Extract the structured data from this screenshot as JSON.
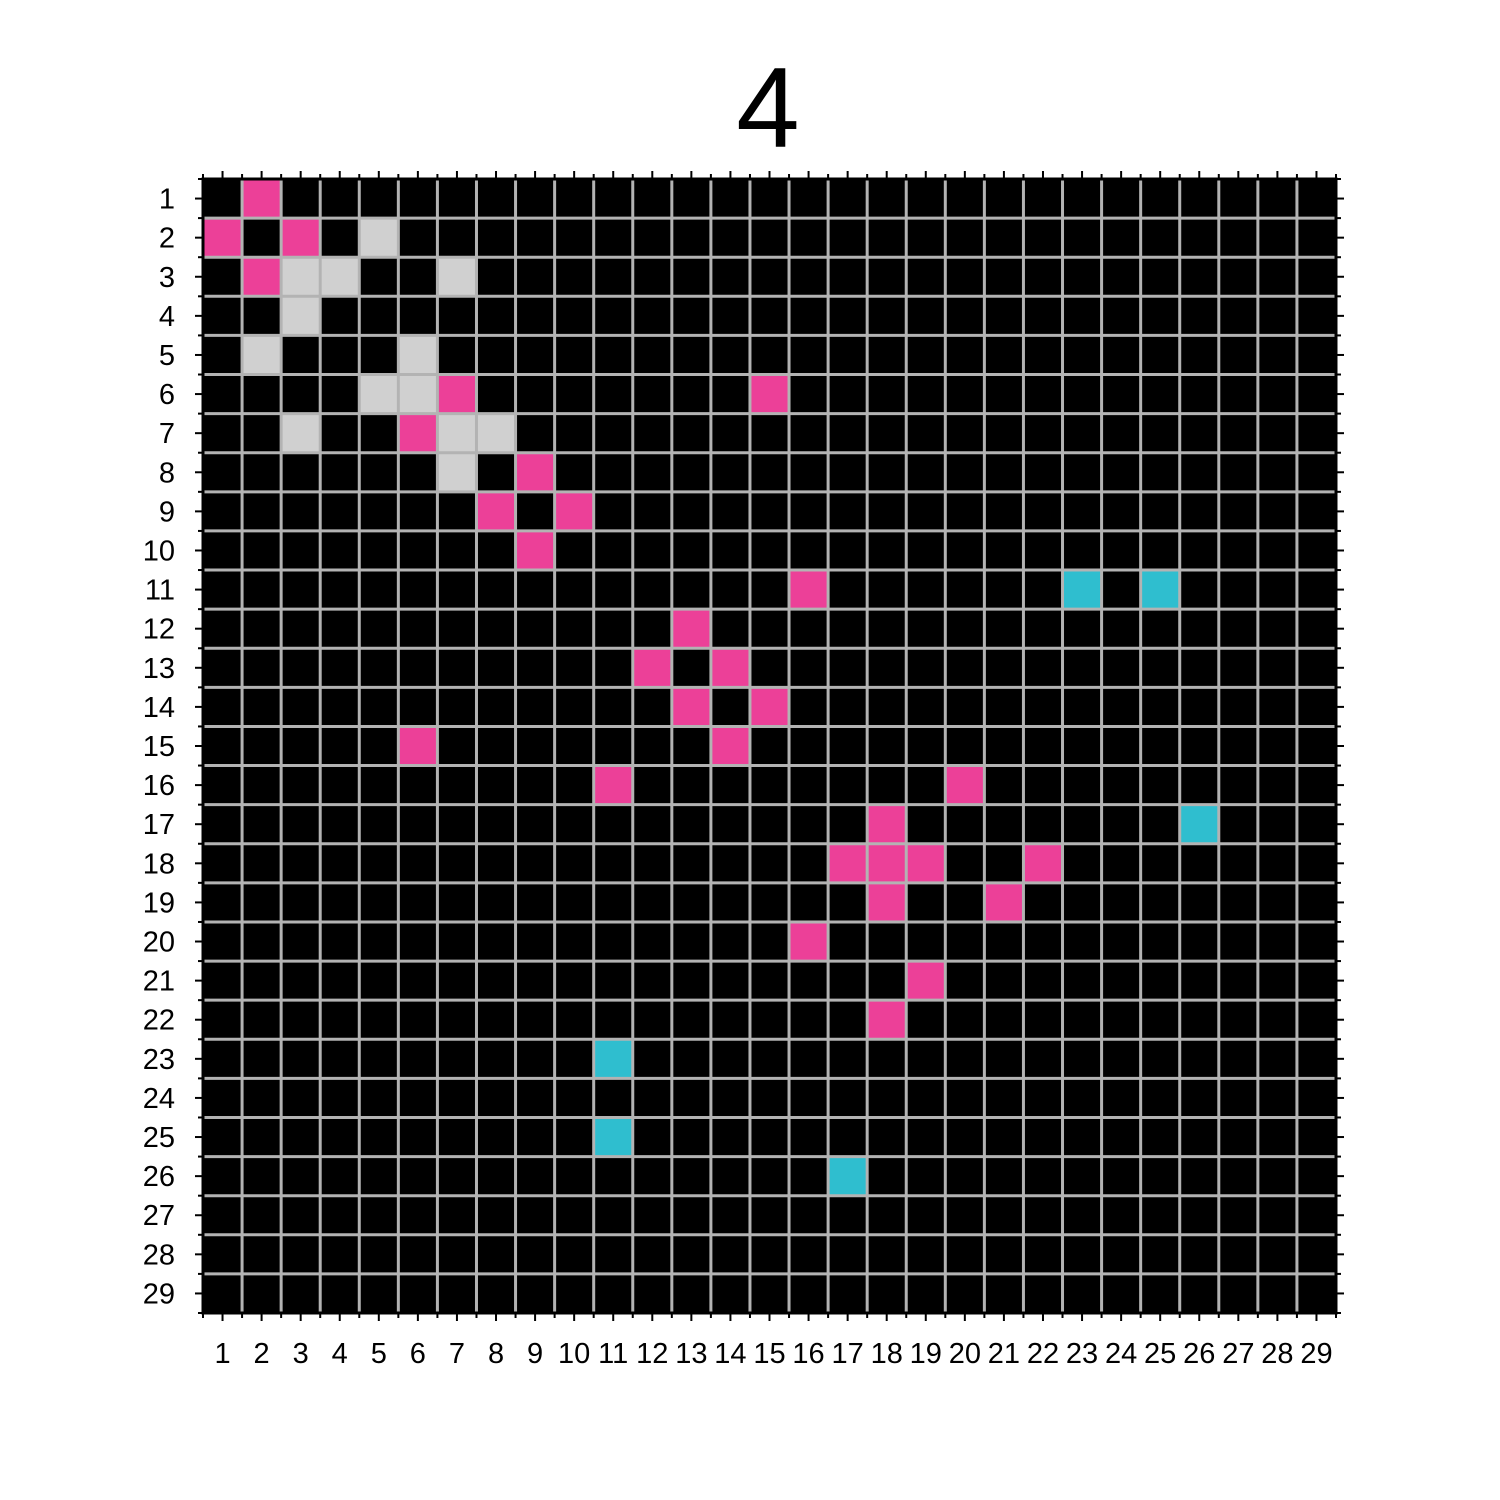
{
  "chart_data": {
    "type": "heatmap",
    "title": "4",
    "xlabel": "",
    "ylabel": "",
    "rows": 29,
    "cols": 29,
    "x_tick_labels": [
      "1",
      "2",
      "3",
      "4",
      "5",
      "6",
      "7",
      "8",
      "9",
      "10",
      "11",
      "12",
      "13",
      "14",
      "15",
      "16",
      "17",
      "18",
      "19",
      "20",
      "21",
      "22",
      "23",
      "24",
      "25",
      "26",
      "27",
      "28",
      "29"
    ],
    "y_tick_labels": [
      "1",
      "2",
      "3",
      "4",
      "5",
      "6",
      "7",
      "8",
      "9",
      "10",
      "11",
      "12",
      "13",
      "14",
      "15",
      "16",
      "17",
      "18",
      "19",
      "20",
      "21",
      "22",
      "23",
      "24",
      "25",
      "26",
      "27",
      "28",
      "29"
    ],
    "grid": true,
    "colors": {
      "background": "#000000",
      "grid": "#b3b3b3",
      "pink": "#ec4098",
      "light_gray": "#d0d0d0",
      "cyan": "#2fbecf"
    },
    "cells": {
      "pink": [
        [
          1,
          2
        ],
        [
          2,
          1
        ],
        [
          2,
          3
        ],
        [
          3,
          2
        ],
        [
          6,
          7
        ],
        [
          6,
          15
        ],
        [
          7,
          6
        ],
        [
          8,
          9
        ],
        [
          9,
          8
        ],
        [
          9,
          10
        ],
        [
          10,
          9
        ],
        [
          11,
          16
        ],
        [
          12,
          13
        ],
        [
          13,
          12
        ],
        [
          13,
          14
        ],
        [
          14,
          13
        ],
        [
          14,
          15
        ],
        [
          15,
          6
        ],
        [
          15,
          14
        ],
        [
          16,
          11
        ],
        [
          16,
          20
        ],
        [
          17,
          18
        ],
        [
          18,
          17
        ],
        [
          18,
          18
        ],
        [
          18,
          19
        ],
        [
          18,
          22
        ],
        [
          19,
          18
        ],
        [
          19,
          21
        ],
        [
          20,
          16
        ],
        [
          21,
          19
        ],
        [
          22,
          18
        ]
      ],
      "light_gray": [
        [
          2,
          5
        ],
        [
          3,
          3
        ],
        [
          3,
          4
        ],
        [
          3,
          7
        ],
        [
          4,
          3
        ],
        [
          5,
          2
        ],
        [
          5,
          6
        ],
        [
          6,
          5
        ],
        [
          6,
          6
        ],
        [
          7,
          3
        ],
        [
          7,
          7
        ],
        [
          7,
          8
        ],
        [
          8,
          7
        ]
      ],
      "cyan": [
        [
          11,
          23
        ],
        [
          11,
          25
        ],
        [
          17,
          26
        ],
        [
          23,
          11
        ],
        [
          25,
          11
        ],
        [
          26,
          17
        ]
      ]
    }
  }
}
